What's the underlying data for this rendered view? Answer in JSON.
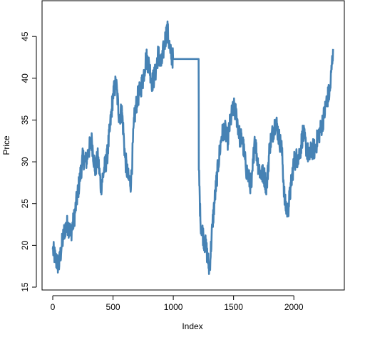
{
  "chart_data": {
    "type": "line",
    "title": "",
    "xlabel": "Index",
    "ylabel": "Price",
    "xlim": [
      0,
      2330
    ],
    "ylim": [
      15,
      48
    ],
    "xticks": [
      0,
      500,
      1000,
      1500,
      2000
    ],
    "yticks": [
      15,
      20,
      25,
      30,
      35,
      40,
      45
    ],
    "grid": false,
    "legend": "none",
    "series": [
      {
        "color": "#4682B4",
        "x": [
          0,
          25,
          50,
          75,
          100,
          125,
          150,
          175,
          200,
          225,
          250,
          275,
          300,
          325,
          350,
          375,
          400,
          425,
          450,
          475,
          500,
          525,
          550,
          575,
          600,
          625,
          650,
          675,
          700,
          725,
          750,
          775,
          800,
          825,
          850,
          875,
          900,
          925,
          950,
          975,
          1000,
          1210,
          1212,
          1225,
          1250,
          1275,
          1300,
          1325,
          1350,
          1375,
          1400,
          1425,
          1450,
          1475,
          1500,
          1525,
          1550,
          1575,
          1600,
          1625,
          1650,
          1675,
          1700,
          1725,
          1750,
          1775,
          1800,
          1825,
          1850,
          1875,
          1900,
          1925,
          1950,
          1975,
          2000,
          2025,
          2050,
          2075,
          2100,
          2125,
          2150,
          2175,
          2200,
          2225,
          2250,
          2275,
          2300,
          2325
        ],
        "y": [
          19.5,
          18.3,
          17.5,
          20.0,
          22.0,
          22.5,
          21.5,
          23.0,
          25.5,
          28.0,
          30.5,
          30.0,
          31.5,
          32.5,
          29.0,
          30.5,
          27.0,
          29.0,
          30.5,
          34.0,
          38.0,
          39.5,
          35.5,
          36.0,
          30.5,
          28.0,
          27.5,
          35.0,
          37.5,
          38.5,
          40.0,
          42.5,
          41.5,
          39.5,
          40.5,
          43.0,
          41.5,
          44.0,
          46.0,
          43.0,
          42.3,
          42.3,
          29.0,
          23.0,
          21.0,
          19.5,
          17.0,
          22.5,
          26.5,
          30.0,
          33.0,
          34.0,
          32.5,
          35.0,
          36.5,
          35.5,
          33.0,
          32.5,
          29.5,
          28.0,
          27.0,
          33.0,
          30.0,
          28.5,
          28.5,
          27.0,
          32.0,
          33.5,
          35.0,
          33.0,
          31.5,
          25.0,
          24.0,
          27.0,
          30.0,
          30.5,
          31.0,
          33.5,
          32.0,
          30.5,
          31.5,
          31.5,
          33.0,
          34.0,
          35.5,
          37.5,
          38.5,
          43.5
        ]
      }
    ]
  }
}
